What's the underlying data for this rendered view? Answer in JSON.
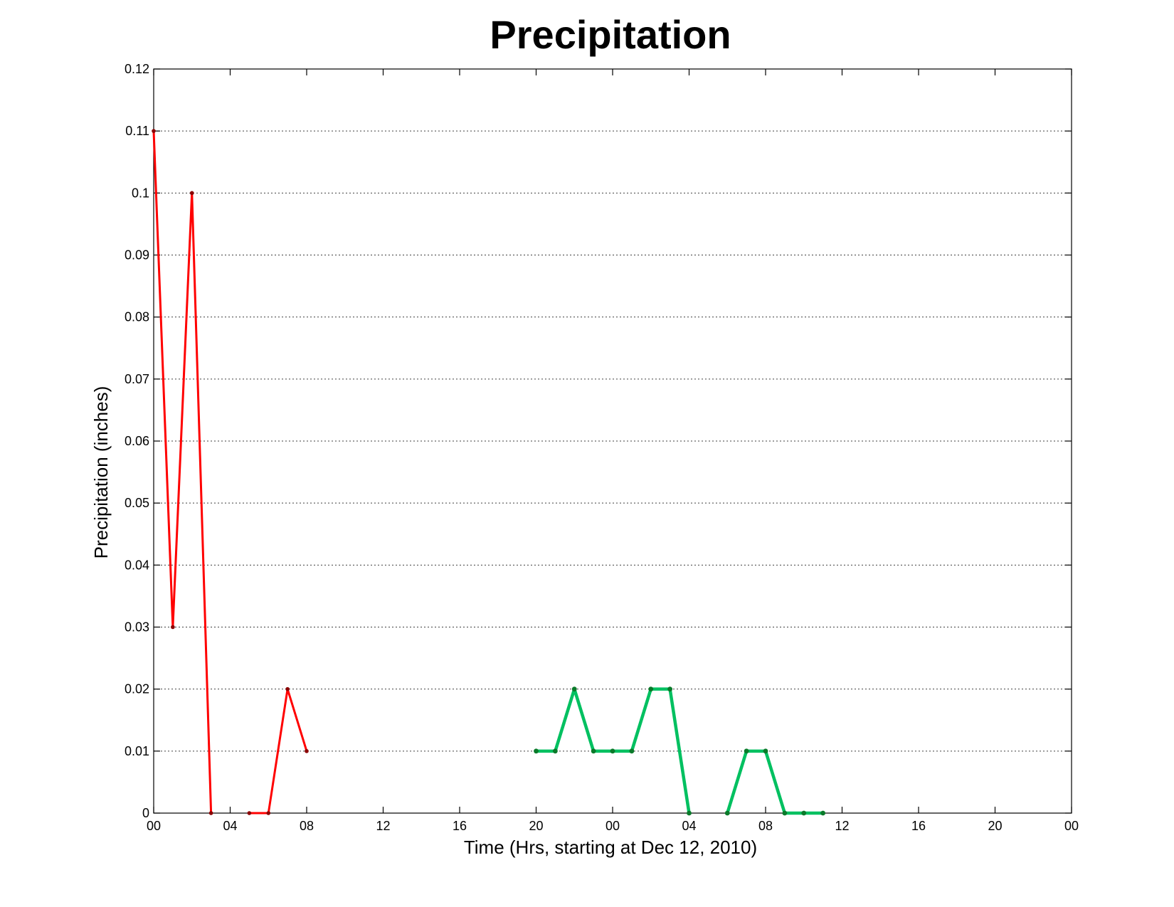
{
  "chart_data": {
    "type": "line",
    "title": "Precipitation",
    "xlabel": "Time (Hrs, starting at Dec 12, 2010)",
    "ylabel": "Precipitation (inches)",
    "xlim": [
      0,
      48
    ],
    "ylim": [
      0,
      0.12
    ],
    "x_ticks": [
      0,
      4,
      8,
      12,
      16,
      20,
      24,
      28,
      32,
      36,
      40,
      44,
      48
    ],
    "x_tick_labels": [
      "00",
      "04",
      "08",
      "12",
      "16",
      "20",
      "00",
      "04",
      "08",
      "12",
      "16",
      "20",
      "00"
    ],
    "y_ticks": [
      0,
      0.01,
      0.02,
      0.03,
      0.04,
      0.05,
      0.06,
      0.07,
      0.08,
      0.09,
      0.1,
      0.11,
      0.12
    ],
    "y_tick_labels": [
      "0",
      "0.01",
      "0.02",
      "0.03",
      "0.04",
      "0.05",
      "0.06",
      "0.07",
      "0.08",
      "0.09",
      "0.1",
      "0.11",
      "0.12"
    ],
    "grid": "horizontal",
    "series": [
      {
        "color": "#ff0000",
        "marker_color": "#8b0000",
        "points": [
          [
            0,
            0.11
          ],
          [
            1,
            0.03
          ],
          [
            2,
            0.1
          ],
          [
            3,
            0
          ],
          [
            null,
            null
          ],
          [
            5,
            0
          ],
          [
            6,
            0
          ],
          [
            7,
            0.02
          ],
          [
            8,
            0.01
          ]
        ]
      },
      {
        "color": "#00c060",
        "marker_color": "#0a7a2a",
        "points": [
          [
            20,
            0.01
          ],
          [
            21,
            0.01
          ],
          [
            22,
            0.02
          ],
          [
            23,
            0.01
          ],
          [
            24,
            0.01
          ],
          [
            25,
            0.01
          ],
          [
            26,
            0.02
          ],
          [
            27,
            0.02
          ],
          [
            28,
            0
          ],
          [
            null,
            null
          ],
          [
            30,
            0
          ],
          [
            31,
            0.01
          ],
          [
            32,
            0.01
          ],
          [
            33,
            0
          ],
          [
            34,
            0
          ],
          [
            35,
            0
          ]
        ]
      }
    ]
  }
}
